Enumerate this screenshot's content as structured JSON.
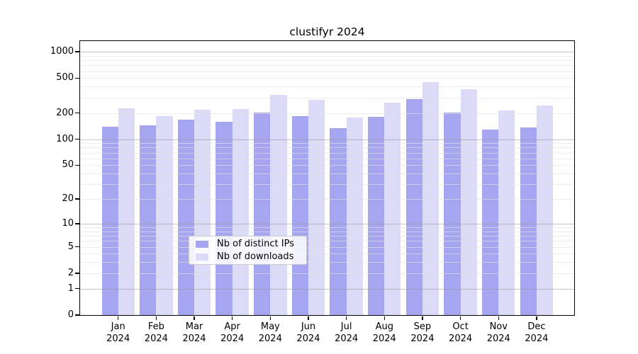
{
  "chart_data": {
    "type": "bar",
    "title": "clustifyr 2024",
    "categories": [
      "Jan 2024",
      "Feb 2024",
      "Mar 2024",
      "Apr 2024",
      "May 2024",
      "Jun 2024",
      "Jul 2024",
      "Aug 2024",
      "Sep 2024",
      "Oct 2024",
      "Nov 2024",
      "Dec 2024"
    ],
    "month_labels": [
      "Jan",
      "Feb",
      "Mar",
      "Apr",
      "May",
      "Jun",
      "Jul",
      "Aug",
      "Sep",
      "Oct",
      "Nov",
      "Dec"
    ],
    "year_label": "2024",
    "series": [
      {
        "name": "Nb of distinct IPs",
        "color": "#a6a6f0",
        "values": [
          140,
          143,
          168,
          157,
          203,
          185,
          135,
          182,
          286,
          201,
          128,
          137
        ]
      },
      {
        "name": "Nb of downloads",
        "color": "#dbdbf8",
        "values": [
          227,
          184,
          219,
          222,
          322,
          280,
          176,
          264,
          447,
          371,
          214,
          245
        ]
      }
    ],
    "y_axis": {
      "scale": "log1p",
      "tick_values": [
        0,
        1,
        2,
        5,
        10,
        20,
        50,
        100,
        200,
        500,
        1000
      ],
      "tick_labels": [
        "0",
        "1",
        "2",
        "5",
        "10",
        "20",
        "50",
        "100",
        "200",
        "500",
        "1000"
      ],
      "range": [
        0,
        1000
      ]
    },
    "grid": true,
    "legend_position": "bottom-center-inside"
  }
}
